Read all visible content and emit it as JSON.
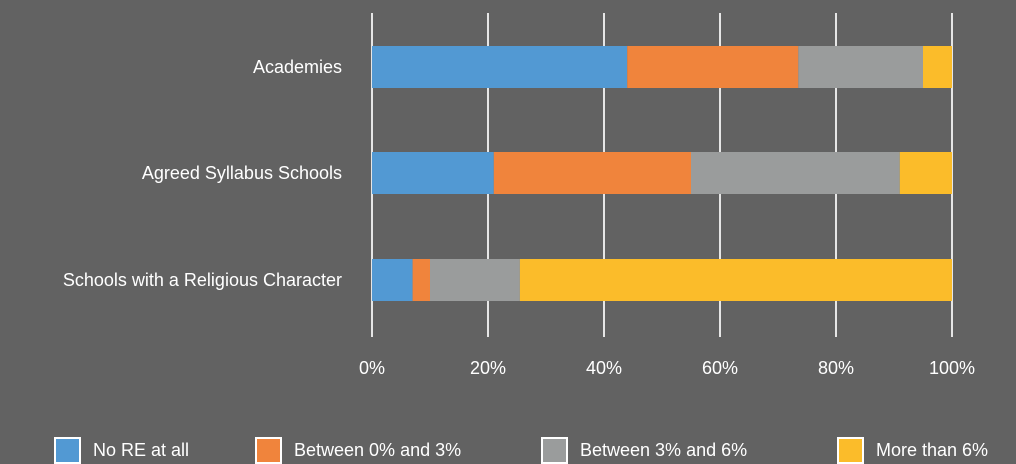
{
  "chart_data": {
    "type": "bar",
    "orientation": "horizontal",
    "stacked": true,
    "categories": [
      "Academies",
      "Agreed Syllabus Schools",
      "Schools with a Religious Character"
    ],
    "series": [
      {
        "name": "No RE at all",
        "color": "#5299d3",
        "values": [
          44,
          21,
          7
        ]
      },
      {
        "name": "Between 0% and 3%",
        "color": "#f0843c",
        "values": [
          29.5,
          34,
          3
        ]
      },
      {
        "name": "Between 3% and 6%",
        "color": "#9a9c9c",
        "values": [
          21.5,
          36,
          15.5
        ]
      },
      {
        "name": "More than 6%",
        "color": "#fbbc2a",
        "values": [
          5,
          9,
          74.5
        ]
      }
    ],
    "x_ticks": [
      "0%",
      "20%",
      "40%",
      "60%",
      "80%",
      "100%"
    ],
    "xlim": [
      0,
      100
    ],
    "grid": true,
    "legend_position": "bottom"
  },
  "colors": {
    "background": "#626262",
    "gridline": "#e6e6e6"
  }
}
